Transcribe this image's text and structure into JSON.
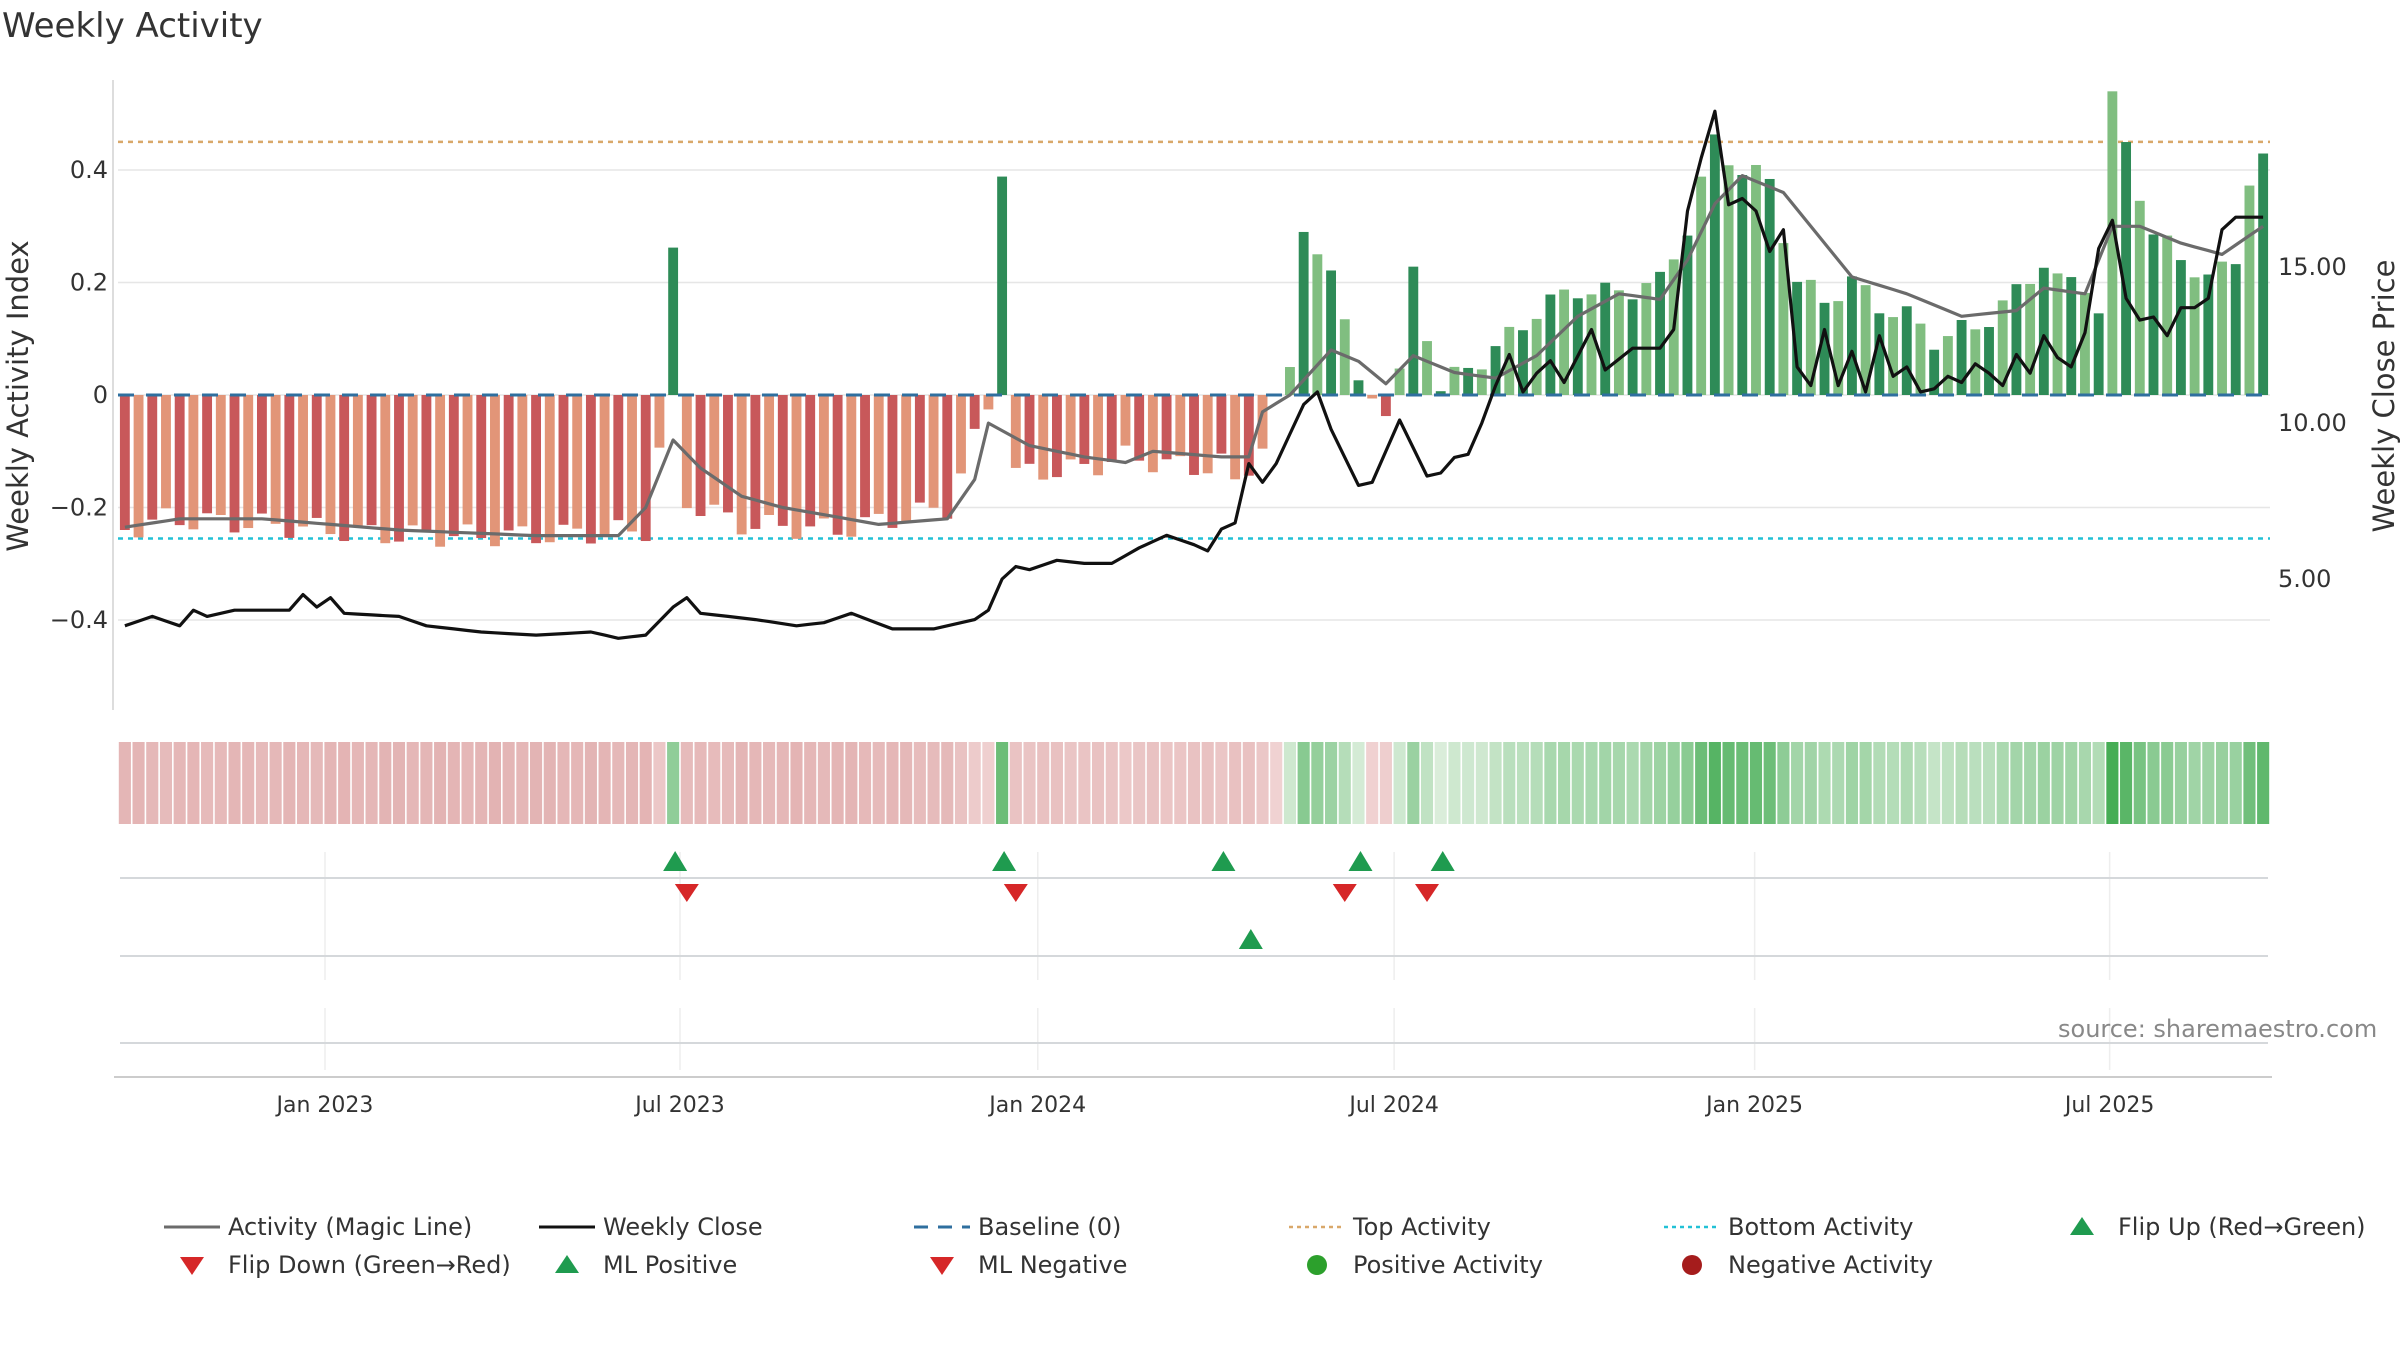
{
  "title": "Weekly Activity",
  "source": "source: sharemaestro.com",
  "chart_data": {
    "type": "bar",
    "title": "Weekly Activity",
    "ylabel_left": "Weekly Activity Index",
    "ylabel_right": "Weekly Close Price",
    "left_ticks": [
      "0.4",
      "0.2",
      "0",
      "−0.2",
      "−0.4"
    ],
    "left_tick_values": [
      0.4,
      0.2,
      0,
      -0.2,
      -0.4
    ],
    "right_ticks": [
      "15.00",
      "10.00",
      "5.00"
    ],
    "right_tick_values": [
      15,
      10,
      5
    ],
    "ylim_left": [
      -0.56,
      0.56
    ],
    "ylim_right": [
      0.8,
      21.0
    ],
    "x_ticks": [
      "Jan 2023",
      "Jul 2023",
      "Jan 2024",
      "Jul 2024",
      "Jan 2025",
      "Jul 2025"
    ],
    "x_tick_weeks": [
      14.6,
      40.5,
      66.6,
      92.6,
      118.9,
      144.8
    ],
    "weeks": 157,
    "top_activity": 0.45,
    "bottom_activity": -0.255,
    "baseline": 0,
    "activity_anchors": [
      [
        0,
        -0.24
      ],
      [
        3,
        -0.22
      ],
      [
        10,
        -0.23
      ],
      [
        20,
        -0.25
      ],
      [
        30,
        -0.25
      ],
      [
        38,
        -0.24
      ],
      [
        39,
        -0.1
      ],
      [
        40,
        0.28
      ],
      [
        41,
        -0.19
      ],
      [
        45,
        -0.23
      ],
      [
        52,
        -0.24
      ],
      [
        60,
        -0.2
      ],
      [
        63,
        -0.02
      ],
      [
        64,
        0.37
      ],
      [
        65,
        -0.14
      ],
      [
        70,
        -0.13
      ],
      [
        73,
        -0.11
      ],
      [
        78,
        -0.13
      ],
      [
        80,
        -0.12
      ],
      [
        81,
        -0.16
      ],
      [
        83,
        -0.09
      ],
      [
        85,
        0.05
      ],
      [
        86,
        0.27
      ],
      [
        88,
        0.24
      ],
      [
        90,
        0.01
      ],
      [
        92,
        -0.05
      ],
      [
        93,
        0.03
      ],
      [
        94,
        0.22
      ],
      [
        96,
        0.01
      ],
      [
        98,
        0.05
      ],
      [
        100,
        0.08
      ],
      [
        103,
        0.15
      ],
      [
        106,
        0.19
      ],
      [
        108,
        0.18
      ],
      [
        112,
        0.2
      ],
      [
        114,
        0.3
      ],
      [
        116,
        0.45
      ],
      [
        118,
        0.4
      ],
      [
        120,
        0.38
      ],
      [
        122,
        0.2
      ],
      [
        124,
        0.17
      ],
      [
        126,
        0.2
      ],
      [
        128,
        0.16
      ],
      [
        130,
        0.14
      ],
      [
        132,
        0.1
      ],
      [
        135,
        0.12
      ],
      [
        138,
        0.18
      ],
      [
        140,
        0.24
      ],
      [
        141,
        0.2
      ],
      [
        143,
        0.2
      ],
      [
        144,
        0.15
      ],
      [
        145,
        0.52
      ],
      [
        146,
        0.45
      ],
      [
        148,
        0.28
      ],
      [
        150,
        0.25
      ],
      [
        152,
        0.2
      ],
      [
        154,
        0.25
      ],
      [
        155,
        0.38
      ],
      [
        156,
        0.41
      ]
    ],
    "magic_line_anchors": [
      [
        0,
        -0.235
      ],
      [
        4,
        -0.22
      ],
      [
        10,
        -0.22
      ],
      [
        20,
        -0.24
      ],
      [
        30,
        -0.25
      ],
      [
        36,
        -0.25
      ],
      [
        38,
        -0.2
      ],
      [
        40,
        -0.08
      ],
      [
        42,
        -0.13
      ],
      [
        45,
        -0.18
      ],
      [
        48,
        -0.2
      ],
      [
        55,
        -0.23
      ],
      [
        60,
        -0.22
      ],
      [
        62,
        -0.15
      ],
      [
        63,
        -0.05
      ],
      [
        66,
        -0.09
      ],
      [
        70,
        -0.11
      ],
      [
        73,
        -0.12
      ],
      [
        75,
        -0.1
      ],
      [
        80,
        -0.11
      ],
      [
        82,
        -0.11
      ],
      [
        83,
        -0.03
      ],
      [
        85,
        0.0
      ],
      [
        88,
        0.08
      ],
      [
        90,
        0.06
      ],
      [
        92,
        0.02
      ],
      [
        94,
        0.07
      ],
      [
        97,
        0.04
      ],
      [
        100,
        0.03
      ],
      [
        103,
        0.07
      ],
      [
        106,
        0.14
      ],
      [
        109,
        0.18
      ],
      [
        112,
        0.17
      ],
      [
        114,
        0.24
      ],
      [
        116,
        0.34
      ],
      [
        118,
        0.39
      ],
      [
        121,
        0.36
      ],
      [
        124,
        0.27
      ],
      [
        126,
        0.21
      ],
      [
        130,
        0.18
      ],
      [
        134,
        0.14
      ],
      [
        138,
        0.15
      ],
      [
        140,
        0.19
      ],
      [
        143,
        0.18
      ],
      [
        145,
        0.3
      ],
      [
        147,
        0.3
      ],
      [
        150,
        0.27
      ],
      [
        153,
        0.25
      ],
      [
        156,
        0.3
      ]
    ],
    "close_anchors": [
      [
        0,
        3.5
      ],
      [
        2,
        3.8
      ],
      [
        4,
        3.5
      ],
      [
        5,
        4.0
      ],
      [
        6,
        3.8
      ],
      [
        8,
        4.0
      ],
      [
        12,
        4.0
      ],
      [
        13,
        4.5
      ],
      [
        14,
        4.1
      ],
      [
        15,
        4.4
      ],
      [
        16,
        3.9
      ],
      [
        20,
        3.8
      ],
      [
        22,
        3.5
      ],
      [
        26,
        3.3
      ],
      [
        30,
        3.2
      ],
      [
        34,
        3.3
      ],
      [
        36,
        3.1
      ],
      [
        38,
        3.2
      ],
      [
        40,
        4.1
      ],
      [
        41,
        4.4
      ],
      [
        42,
        3.9
      ],
      [
        46,
        3.7
      ],
      [
        49,
        3.5
      ],
      [
        51,
        3.6
      ],
      [
        53,
        3.9
      ],
      [
        56,
        3.4
      ],
      [
        59,
        3.4
      ],
      [
        62,
        3.7
      ],
      [
        63,
        4.0
      ],
      [
        64,
        5.0
      ],
      [
        65,
        5.4
      ],
      [
        66,
        5.3
      ],
      [
        68,
        5.6
      ],
      [
        70,
        5.5
      ],
      [
        72,
        5.5
      ],
      [
        74,
        6.0
      ],
      [
        76,
        6.4
      ],
      [
        78,
        6.1
      ],
      [
        79,
        5.9
      ],
      [
        80,
        6.6
      ],
      [
        81,
        6.8
      ],
      [
        82,
        8.7
      ],
      [
        83,
        8.1
      ],
      [
        84,
        8.7
      ],
      [
        86,
        10.6
      ],
      [
        87,
        11.0
      ],
      [
        88,
        9.8
      ],
      [
        90,
        8.0
      ],
      [
        91,
        8.1
      ],
      [
        93,
        10.1
      ],
      [
        95,
        8.3
      ],
      [
        96,
        8.4
      ],
      [
        97,
        8.9
      ],
      [
        98,
        9.0
      ],
      [
        99,
        10.0
      ],
      [
        100,
        11.2
      ],
      [
        101,
        12.2
      ],
      [
        102,
        11.0
      ],
      [
        103,
        11.6
      ],
      [
        104,
        12.0
      ],
      [
        105,
        11.3
      ],
      [
        107,
        13.0
      ],
      [
        108,
        11.7
      ],
      [
        110,
        12.4
      ],
      [
        112,
        12.4
      ],
      [
        113,
        13.0
      ],
      [
        114,
        16.8
      ],
      [
        115,
        18.5
      ],
      [
        116,
        20.0
      ],
      [
        117,
        17.0
      ],
      [
        118,
        17.2
      ],
      [
        119,
        16.8
      ],
      [
        120,
        15.5
      ],
      [
        121,
        16.2
      ],
      [
        122,
        11.8
      ],
      [
        123,
        11.2
      ],
      [
        124,
        13.0
      ],
      [
        125,
        11.2
      ],
      [
        126,
        12.3
      ],
      [
        127,
        11.0
      ],
      [
        128,
        12.8
      ],
      [
        129,
        11.5
      ],
      [
        130,
        11.8
      ],
      [
        131,
        11.0
      ],
      [
        132,
        11.1
      ],
      [
        133,
        11.5
      ],
      [
        134,
        11.3
      ],
      [
        135,
        11.9
      ],
      [
        136,
        11.6
      ],
      [
        137,
        11.2
      ],
      [
        138,
        12.2
      ],
      [
        139,
        11.6
      ],
      [
        140,
        12.8
      ],
      [
        141,
        12.1
      ],
      [
        142,
        11.8
      ],
      [
        143,
        12.9
      ],
      [
        144,
        15.6
      ],
      [
        145,
        16.5
      ],
      [
        146,
        14.0
      ],
      [
        147,
        13.3
      ],
      [
        148,
        13.4
      ],
      [
        149,
        12.8
      ],
      [
        150,
        13.7
      ],
      [
        151,
        13.7
      ],
      [
        152,
        14.0
      ],
      [
        153,
        16.2
      ],
      [
        154,
        16.6
      ]
    ],
    "flip_up_weeks": [
      40,
      64,
      80,
      90,
      96
    ],
    "flip_down_weeks": [
      41,
      65,
      89,
      95
    ],
    "ml_positive_weeks": [
      82
    ],
    "ml_negative_weeks": [],
    "colors": {
      "pos_dark": "#2e8b57",
      "pos_light": "#80be80",
      "neg_dark": "#c8585a",
      "neg_light": "#e29578",
      "magic_line": "#6b6b6b",
      "close": "#111111",
      "baseline": "#2f6f9f",
      "top_line": "#d9a86a",
      "bottom_line": "#22c1d6",
      "flip_up": "#1f9b4f",
      "flip_down": "#d62728",
      "pos_marker": "#2ca02c",
      "neg_marker": "#a51c1c",
      "grid": "#e6e6e6"
    }
  },
  "legend": [
    {
      "symbol": "line-gray",
      "label": "Activity (Magic Line)"
    },
    {
      "symbol": "line-black",
      "label": "Weekly Close"
    },
    {
      "symbol": "dash-blue",
      "label": "Baseline (0)"
    },
    {
      "symbol": "dot-orange",
      "label": "Top Activity"
    },
    {
      "symbol": "dot-cyan",
      "label": "Bottom Activity"
    },
    {
      "symbol": "tri-up-green",
      "label": "Flip Up (Red→Green)"
    },
    {
      "symbol": "tri-down-red",
      "label": "Flip Down (Green→Red)"
    },
    {
      "symbol": "tri-up-green",
      "label": "ML Positive"
    },
    {
      "symbol": "tri-down-red",
      "label": "ML Negative"
    },
    {
      "symbol": "circle-green",
      "label": "Positive Activity"
    },
    {
      "symbol": "circle-darkred",
      "label": "Negative Activity"
    }
  ]
}
